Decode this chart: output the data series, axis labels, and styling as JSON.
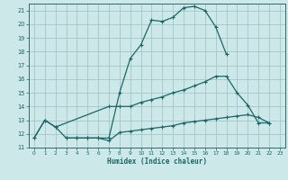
{
  "xlabel": "Humidex (Indice chaleur)",
  "bg_color": "#cce8e8",
  "grid_color": "#9bbfbf",
  "line_color": "#1a6666",
  "spine_color": "#336666",
  "xlim": [
    -0.5,
    23.5
  ],
  "ylim": [
    11.0,
    21.5
  ],
  "xticks": [
    0,
    1,
    2,
    3,
    4,
    5,
    6,
    7,
    8,
    9,
    10,
    11,
    12,
    13,
    14,
    15,
    16,
    17,
    18,
    19,
    20,
    21,
    22,
    23
  ],
  "yticks": [
    11,
    12,
    13,
    14,
    15,
    16,
    17,
    18,
    19,
    20,
    21
  ],
  "line1_x": [
    0,
    1,
    2,
    3,
    4,
    5,
    6,
    7,
    8,
    9,
    10,
    11,
    12,
    13,
    14,
    15,
    16,
    17,
    18
  ],
  "line1_y": [
    11.7,
    13.0,
    12.5,
    11.7,
    11.7,
    11.7,
    11.7,
    11.7,
    15.0,
    17.5,
    18.5,
    20.3,
    20.2,
    20.5,
    21.2,
    21.3,
    21.0,
    19.8,
    17.8
  ],
  "line2_x": [
    0,
    1,
    2,
    7,
    8,
    9,
    10,
    11,
    12,
    13,
    14,
    15,
    16,
    17,
    18,
    19,
    20,
    21,
    22
  ],
  "line2_y": [
    11.7,
    13.0,
    12.5,
    14.0,
    14.0,
    14.0,
    14.3,
    14.5,
    14.7,
    15.0,
    15.2,
    15.5,
    15.8,
    16.2,
    16.2,
    15.0,
    14.1,
    12.8,
    12.8
  ],
  "line3_x": [
    3,
    4,
    5,
    6,
    7,
    8,
    9,
    10,
    11,
    12,
    13,
    14,
    15,
    16,
    17,
    18,
    19,
    20,
    21,
    22
  ],
  "line3_y": [
    11.7,
    11.7,
    11.7,
    11.7,
    11.5,
    12.1,
    12.2,
    12.3,
    12.4,
    12.5,
    12.6,
    12.8,
    12.9,
    13.0,
    13.1,
    13.2,
    13.3,
    13.4,
    13.2,
    12.8
  ]
}
